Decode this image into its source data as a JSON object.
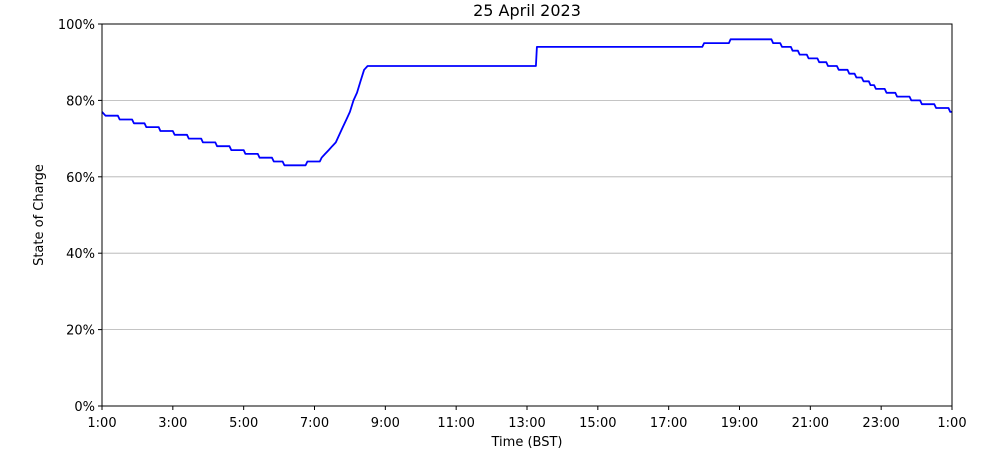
{
  "chart_data": {
    "type": "line",
    "title": "25 April 2023",
    "xlabel": "Time (BST)",
    "ylabel": "State of Charge",
    "x_ticks": [
      "1:00",
      "3:00",
      "5:00",
      "7:00",
      "9:00",
      "11:00",
      "13:00",
      "15:00",
      "17:00",
      "19:00",
      "21:00",
      "23:00",
      "1:00"
    ],
    "y_ticks": [
      "0%",
      "20%",
      "40%",
      "60%",
      "80%",
      "100%"
    ],
    "xlim_hours_since_start": [
      0,
      24
    ],
    "ylim": [
      0,
      100
    ],
    "grid": "horizontal",
    "line_color": "#0000ff",
    "series": [
      {
        "x": [
          0.0,
          0.1,
          0.45,
          0.5,
          0.85,
          0.9,
          1.2,
          1.25,
          1.6,
          1.65,
          2.0,
          2.05,
          2.4,
          2.45,
          2.8,
          2.85,
          3.2,
          3.25,
          3.6,
          3.65,
          4.0,
          4.05,
          4.4,
          4.45,
          4.8,
          4.85,
          5.1,
          5.15,
          5.4,
          5.45,
          5.75,
          5.8,
          6.15,
          6.2,
          6.3,
          6.4,
          6.5,
          6.6,
          6.7,
          6.8,
          6.9,
          7.0,
          7.1,
          7.2,
          7.3,
          7.4,
          7.5,
          7.6,
          7.7,
          7.8,
          7.9,
          8.0,
          8.05,
          12.25,
          12.28,
          16.95,
          17.0,
          17.7,
          17.75,
          18.9,
          18.95,
          19.15,
          19.2,
          19.45,
          19.5,
          19.65,
          19.7,
          19.9,
          19.95,
          20.2,
          20.25,
          20.45,
          20.5,
          20.75,
          20.8,
          21.05,
          21.1,
          21.25,
          21.3,
          21.45,
          21.5,
          21.65,
          21.7,
          21.8,
          21.85,
          22.1,
          22.15,
          22.4,
          22.45,
          22.8,
          22.85,
          23.1,
          23.15,
          23.5,
          23.55,
          23.9,
          23.95,
          24.0
        ],
        "values": [
          77,
          76,
          76,
          75,
          75,
          74,
          74,
          73,
          73,
          72,
          72,
          71,
          71,
          70,
          70,
          69,
          69,
          68,
          68,
          67,
          67,
          66,
          66,
          65,
          65,
          64,
          64,
          63,
          63,
          63,
          63,
          64,
          64,
          65,
          66,
          67,
          68,
          69,
          71,
          73,
          75,
          77,
          80,
          82,
          85,
          88,
          89,
          89,
          89,
          89,
          89,
          89,
          89,
          89,
          94,
          94,
          95,
          95,
          96,
          96,
          95,
          95,
          94,
          94,
          93,
          93,
          92,
          92,
          91,
          91,
          90,
          90,
          89,
          89,
          88,
          88,
          87,
          87,
          86,
          86,
          85,
          85,
          84,
          84,
          83,
          83,
          82,
          82,
          81,
          81,
          80,
          80,
          79,
          79,
          78,
          78,
          77,
          77
        ]
      }
    ]
  }
}
